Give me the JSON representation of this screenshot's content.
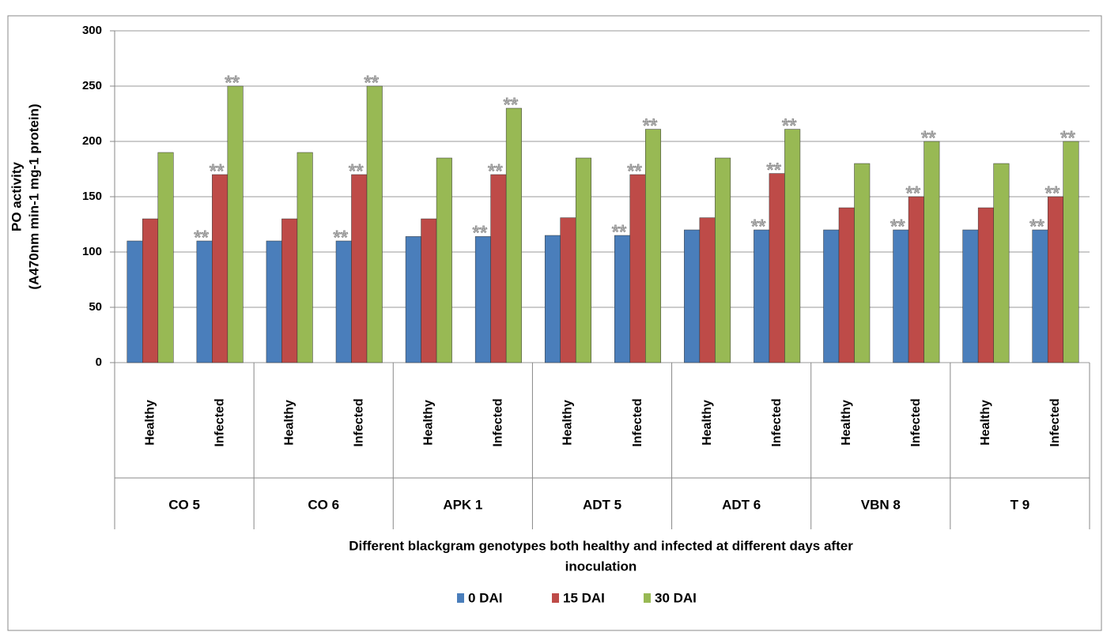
{
  "chart_data": {
    "type": "bar",
    "ylabel": [
      "PO activity",
      "(A470nm min-1 mg-1 protein)"
    ],
    "xlabel": [
      "Different blackgram genotypes both healthy and infected at different days after",
      "inoculation"
    ],
    "categories": [
      "Healthy",
      "Infected",
      "Healthy",
      "Infected",
      "Healthy",
      "Infected",
      "Healthy",
      "Infected",
      "Healthy",
      "Infected",
      "Healthy",
      "Infected",
      "Healthy",
      "Infected"
    ],
    "groups": [
      "CO 5",
      "CO 6",
      "APK 1",
      "ADT 5",
      "ADT 6",
      "VBN 8",
      "T 9"
    ],
    "series": [
      {
        "name": "0 DAI",
        "color": "#4a7ebb",
        "values": [
          110,
          110,
          110,
          110,
          114,
          114,
          115,
          115,
          120,
          120,
          120,
          120,
          120,
          120
        ],
        "significance": [
          null,
          "**",
          null,
          "**",
          null,
          "**",
          null,
          "**",
          null,
          "**",
          null,
          "**",
          null,
          "**"
        ]
      },
      {
        "name": "15 DAI",
        "color": "#be4b48",
        "values": [
          130,
          170,
          130,
          170,
          130,
          170,
          131,
          170,
          131,
          171,
          140,
          150,
          140,
          150
        ],
        "significance": [
          null,
          "**",
          null,
          "**",
          null,
          "**",
          null,
          "**",
          null,
          "**",
          null,
          "**",
          null,
          "**"
        ]
      },
      {
        "name": "30 DAI",
        "color": "#98b954",
        "values": [
          190,
          250,
          190,
          250,
          185,
          230,
          185,
          211,
          185,
          211,
          180,
          200,
          180,
          200
        ],
        "significance": [
          null,
          "**",
          null,
          "**",
          null,
          "**",
          null,
          "**",
          null,
          "**",
          null,
          "**",
          null,
          "**"
        ]
      }
    ],
    "ylim": [
      0,
      300
    ],
    "yticks": [
      0,
      50,
      100,
      150,
      200,
      250,
      300
    ],
    "grid": true,
    "legend": "bottom"
  }
}
